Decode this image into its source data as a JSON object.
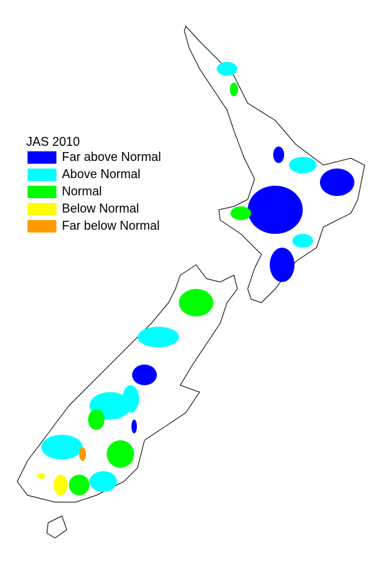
{
  "legend": {
    "title": "JAS 2010",
    "items": [
      {
        "label": "Far above Normal",
        "color": "#0000ff"
      },
      {
        "label": "Above Normal",
        "color": "#00ffff"
      },
      {
        "label": "Normal",
        "color": "#00ff00"
      },
      {
        "label": "Below Normal",
        "color": "#ffff00"
      },
      {
        "label": "Far below Normal",
        "color": "#ff9900"
      }
    ]
  }
}
